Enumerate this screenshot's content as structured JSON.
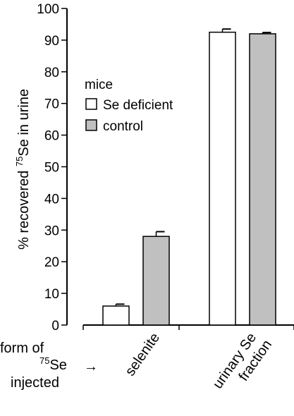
{
  "chart_data": {
    "type": "bar",
    "ylabel_prefix": "% recovered ",
    "ylabel_sup": "75",
    "ylabel_suffix": "Se in urine",
    "ylim": [
      0,
      100
    ],
    "yticks": [
      0,
      10,
      20,
      30,
      40,
      50,
      60,
      70,
      80,
      90,
      100
    ],
    "grid": false,
    "legend_title": "mice",
    "legend_position": "top-left",
    "categories": [
      {
        "lines": [
          "selenite"
        ]
      },
      {
        "lines": [
          "urinary Se",
          "fraction"
        ]
      }
    ],
    "series": [
      {
        "name": "Se deficient",
        "color": "#ffffff",
        "values": [
          6,
          92.5
        ],
        "errors": [
          0.6,
          1.0
        ]
      },
      {
        "name": "control",
        "color": "#c0c0c0",
        "values": [
          28,
          92
        ],
        "errors": [
          1.5,
          0.4
        ]
      }
    ],
    "x_annotation": {
      "line1": "form of",
      "line2_sup": "75",
      "line2_text": "Se",
      "line3": "injected",
      "arrow": "→"
    }
  }
}
